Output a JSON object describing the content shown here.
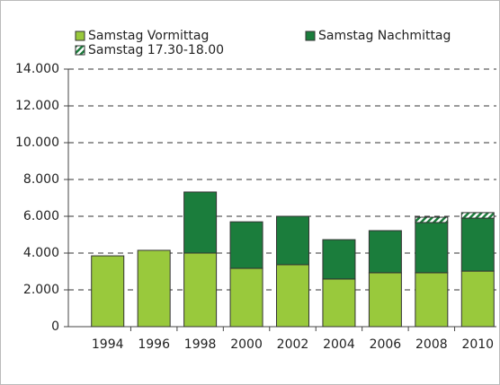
{
  "chart_data": {
    "type": "stacked_bar",
    "categories": [
      "1994",
      "1996",
      "1998",
      "2000",
      "2002",
      "2004",
      "2006",
      "2008",
      "2010"
    ],
    "series": [
      {
        "name": "Samstag Vormittag",
        "color": "#99c93c",
        "values": [
          3850,
          4150,
          4000,
          3170,
          3370,
          2590,
          2930,
          2930,
          3020
        ]
      },
      {
        "name": "Samstag Nachmittag",
        "color": "#1b7d3c",
        "values": [
          null,
          null,
          3320,
          2530,
          2630,
          2140,
          2290,
          2730,
          2880
        ]
      },
      {
        "name": "Samstag 17.30-18.00",
        "color": "#1b7d3c",
        "hatch": true,
        "values": [
          null,
          null,
          null,
          null,
          null,
          null,
          null,
          290,
          300
        ]
      }
    ],
    "ylim": [
      0,
      14000
    ],
    "yticks": [
      0,
      {
        "value": 2000,
        "label": "2.000"
      },
      {
        "value": 4000,
        "label": "4.000"
      },
      {
        "value": 6000,
        "label": "6.000"
      },
      {
        "value": 8000,
        "label": "8.000"
      },
      {
        "value": 10000,
        "label": "10.000"
      },
      {
        "value": 12000,
        "label": "12.000"
      },
      {
        "value": 14000,
        "label": "14.000"
      }
    ],
    "grid": true
  }
}
